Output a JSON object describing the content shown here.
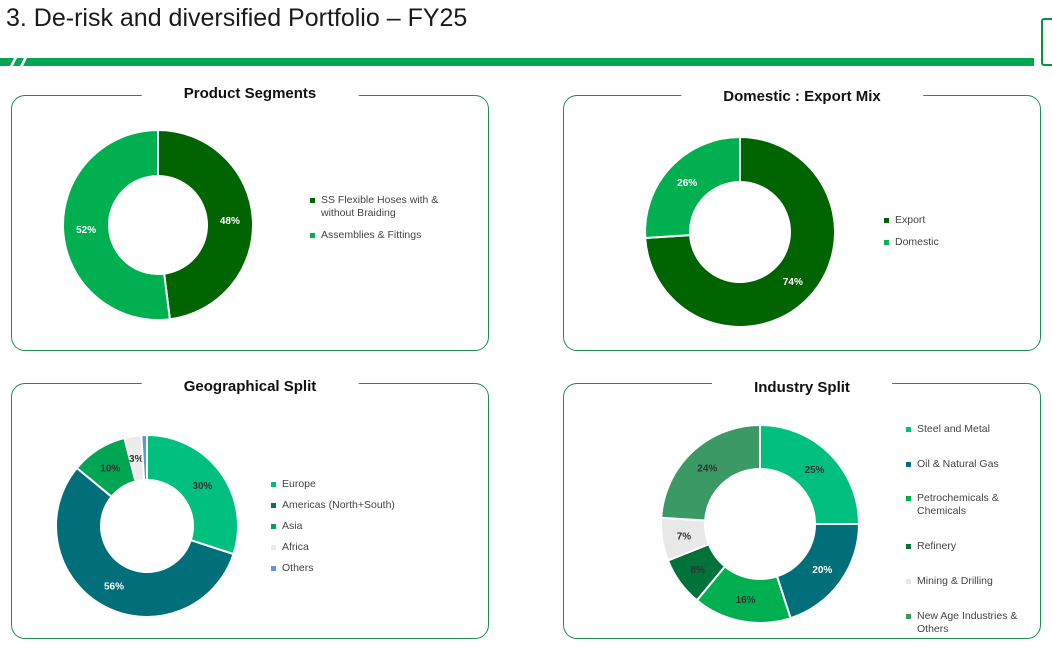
{
  "slide": {
    "title": "3. De-risk and diversified Portfolio – FY25",
    "accent_color": "#00a651"
  },
  "chart_data": [
    {
      "type": "pie",
      "title": "Product Segments",
      "categories": [
        "SS Flexible Hoses with & without Braiding",
        "Assemblies & Fittings"
      ],
      "values": [
        48,
        52
      ],
      "labels": [
        "48%",
        "52%"
      ],
      "colors": [
        "#006400",
        "#00b050"
      ],
      "legend": "right"
    },
    {
      "type": "pie",
      "title": "Domestic : Export Mix",
      "categories": [
        "Export",
        "Domestic"
      ],
      "values": [
        74,
        26
      ],
      "labels": [
        "74%",
        "26%"
      ],
      "colors": [
        "#006400",
        "#00b050"
      ],
      "legend": "right"
    },
    {
      "type": "pie",
      "title": "Geographical Split",
      "categories": [
        "Europe",
        "Americas (North+South)",
        "Asia",
        "Africa",
        "Others"
      ],
      "values": [
        30,
        56,
        10,
        3,
        1
      ],
      "labels": [
        "30%",
        "56%",
        "10%",
        "3%",
        ""
      ],
      "colors": [
        "#00bf7f",
        "#006f7a",
        "#00a651",
        "#ececec",
        "#5b9bd5"
      ],
      "legend": "right"
    },
    {
      "type": "pie",
      "title": "Industry Split",
      "categories": [
        "Steel and Metal",
        "Oil & Natural Gas",
        "Petrochemicals & Chemicals",
        "Refinery",
        "Mining & Drilling",
        "New Age Industries & Others"
      ],
      "values": [
        25,
        20,
        16,
        8,
        7,
        24
      ],
      "labels": [
        "25%",
        "20%",
        "16%",
        "8%",
        "7%",
        "24%"
      ],
      "colors": [
        "#00bf7f",
        "#006f7a",
        "#00b050",
        "#00733a",
        "#e8e8e8",
        "#3b9966"
      ],
      "legend": "right"
    }
  ]
}
